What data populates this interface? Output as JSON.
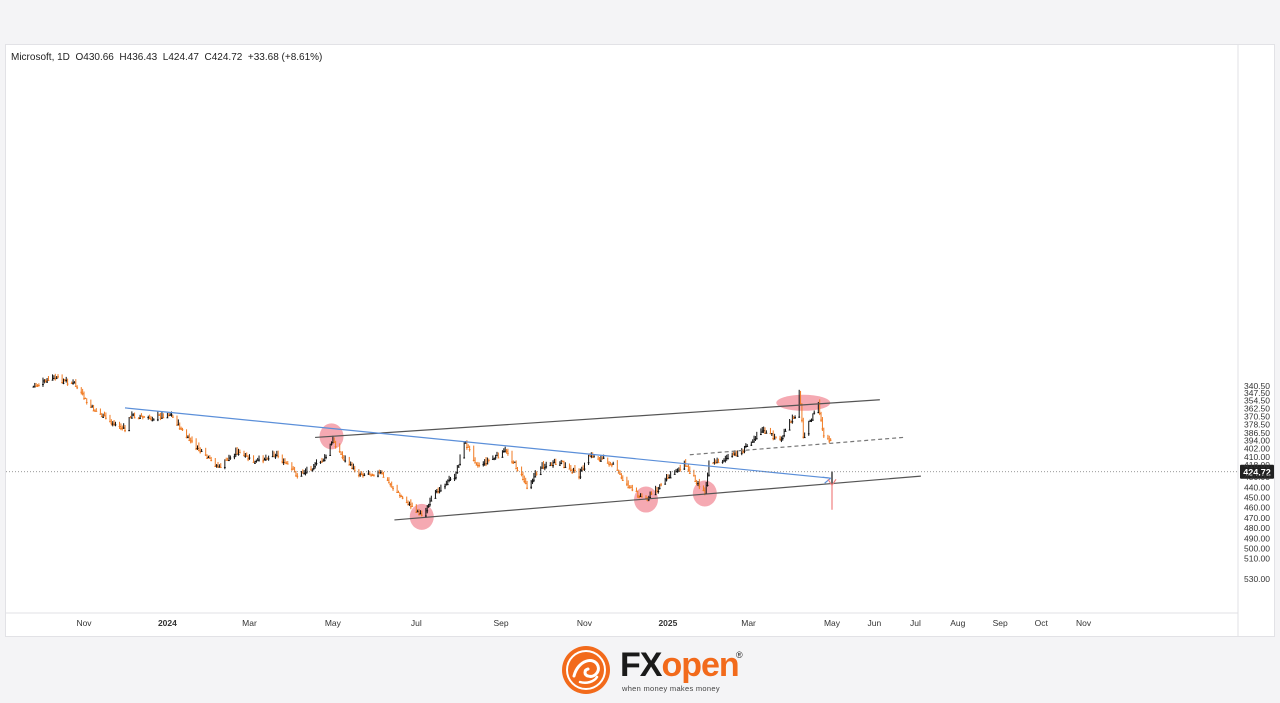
{
  "chart_data": {
    "type": "candlestick",
    "symbol": "Microsoft",
    "interval": "1D",
    "ohlc": {
      "open_label": "O430.66",
      "high_label": "H436.43",
      "low_label": "L424.47",
      "close_label": "C424.72",
      "change_label": "+33.68 (+8.61%)"
    },
    "last_price_label": "424.72",
    "last_price": 424.72,
    "y_axis": {
      "ticks": [
        530,
        510,
        500,
        490,
        480,
        470,
        460,
        450,
        440,
        430,
        418,
        410,
        402,
        394,
        386.5,
        378.5,
        370.5,
        362.5,
        354.5,
        347.5,
        340.5
      ],
      "tick_labels": [
        "530.00",
        "510.00",
        "500.00",
        "490.00",
        "480.00",
        "470.00",
        "460.00",
        "450.00",
        "440.00",
        "430.00",
        "418.00",
        "410.00",
        "402.00",
        "394.00",
        "386.50",
        "378.50",
        "370.50",
        "362.50",
        "354.50",
        "347.50",
        "340.50"
      ],
      "range": [
        337,
        535
      ]
    },
    "x_axis": {
      "labels": [
        "Nov",
        "2024",
        "Mar",
        "May",
        "Jul",
        "Sep",
        "Nov",
        "2025",
        "Mar",
        "May",
        "Jun",
        "Jul",
        "Aug",
        "Sep",
        "Oct",
        "Nov"
      ],
      "bold": [
        "2024",
        "2025"
      ],
      "range": [
        "2023-09-20",
        "2025-11-30"
      ]
    },
    "price_path": [
      [
        "2023-09-25",
        341
      ],
      [
        "2023-10-10",
        332
      ],
      [
        "2023-10-25",
        338
      ],
      [
        "2023-11-05",
        360
      ],
      [
        "2023-11-20",
        375
      ],
      [
        "2023-12-01",
        383
      ],
      [
        "2023-12-05",
        369
      ],
      [
        "2023-12-20",
        372
      ],
      [
        "2024-01-03",
        367
      ],
      [
        "2024-01-15",
        390
      ],
      [
        "2024-01-29",
        410
      ],
      [
        "2024-02-08",
        420
      ],
      [
        "2024-02-20",
        404
      ],
      [
        "2024-03-05",
        415
      ],
      [
        "2024-03-20",
        406
      ],
      [
        "2024-04-05",
        428
      ],
      [
        "2024-04-25",
        412
      ],
      [
        "2024-05-01",
        392
      ],
      [
        "2024-05-08",
        410
      ],
      [
        "2024-05-20",
        426
      ],
      [
        "2024-06-05",
        426
      ],
      [
        "2024-06-20",
        449
      ],
      [
        "2024-07-05",
        467
      ],
      [
        "2024-07-18",
        440
      ],
      [
        "2024-07-30",
        427
      ],
      [
        "2024-08-05",
        394
      ],
      [
        "2024-08-15",
        418
      ],
      [
        "2024-08-28",
        410
      ],
      [
        "2024-09-05",
        403
      ],
      [
        "2024-09-20",
        438
      ],
      [
        "2024-10-01",
        418
      ],
      [
        "2024-10-15",
        416
      ],
      [
        "2024-10-28",
        427
      ],
      [
        "2024-11-05",
        408
      ],
      [
        "2024-11-20",
        415
      ],
      [
        "2024-12-05",
        442
      ],
      [
        "2024-12-16",
        451
      ],
      [
        "2024-12-30",
        433
      ],
      [
        "2025-01-13",
        416
      ],
      [
        "2025-01-28",
        445
      ],
      [
        "2025-01-31",
        415
      ],
      [
        "2025-02-10",
        413
      ],
      [
        "2025-02-25",
        403
      ],
      [
        "2025-03-10",
        383
      ],
      [
        "2025-03-24",
        393
      ],
      [
        "2025-04-04",
        368
      ],
      [
        "2025-04-07",
        345
      ],
      [
        "2025-04-10",
        388
      ],
      [
        "2025-04-21",
        358
      ],
      [
        "2025-04-25",
        391
      ],
      [
        "2025-04-30",
        395
      ],
      [
        "2025-05-01",
        425
      ]
    ],
    "lines": [
      {
        "name": "upper-resistance",
        "color": "#555555",
        "points": [
          [
            "2024-06-15",
            472
          ],
          [
            "2025-07-05",
            429
          ]
        ]
      },
      {
        "name": "lower-support",
        "color": "#555555",
        "points": [
          [
            "2024-04-18",
            391
          ],
          [
            "2025-06-05",
            354
          ]
        ]
      },
      {
        "name": "rising-trendline",
        "color": "#5b8fd9",
        "points": [
          [
            "2023-12-01",
            362
          ],
          [
            "2025-04-30",
            431
          ]
        ]
      },
      {
        "name": "dashed-resistance",
        "color": "#777777",
        "dashed": true,
        "points": [
          [
            "2025-01-17",
            408
          ],
          [
            "2025-06-22",
            391
          ]
        ]
      }
    ],
    "highlights": [
      {
        "x": "2024-04-30",
        "y": 390,
        "rx": 12,
        "ry": 13
      },
      {
        "x": "2024-07-05",
        "y": 469,
        "rx": 12,
        "ry": 13
      },
      {
        "x": "2024-12-16",
        "y": 452,
        "rx": 12,
        "ry": 13
      },
      {
        "x": "2025-01-28",
        "y": 446,
        "rx": 12,
        "ry": 13
      },
      {
        "x": "2025-04-10",
        "y": 357,
        "rx": 27,
        "ry": 8
      }
    ],
    "arrow": {
      "x": "2025-05-01",
      "from": 462,
      "to": 438,
      "color": "#f08080"
    },
    "colors": {
      "up": "#f07a22",
      "down": "#111111",
      "highlight": "#f39aa4"
    },
    "grid": false,
    "legend": "none"
  },
  "branding": {
    "logo_prefix": "FX",
    "logo_suffix": "open",
    "registered_mark": "®",
    "tagline": "when money makes money"
  }
}
